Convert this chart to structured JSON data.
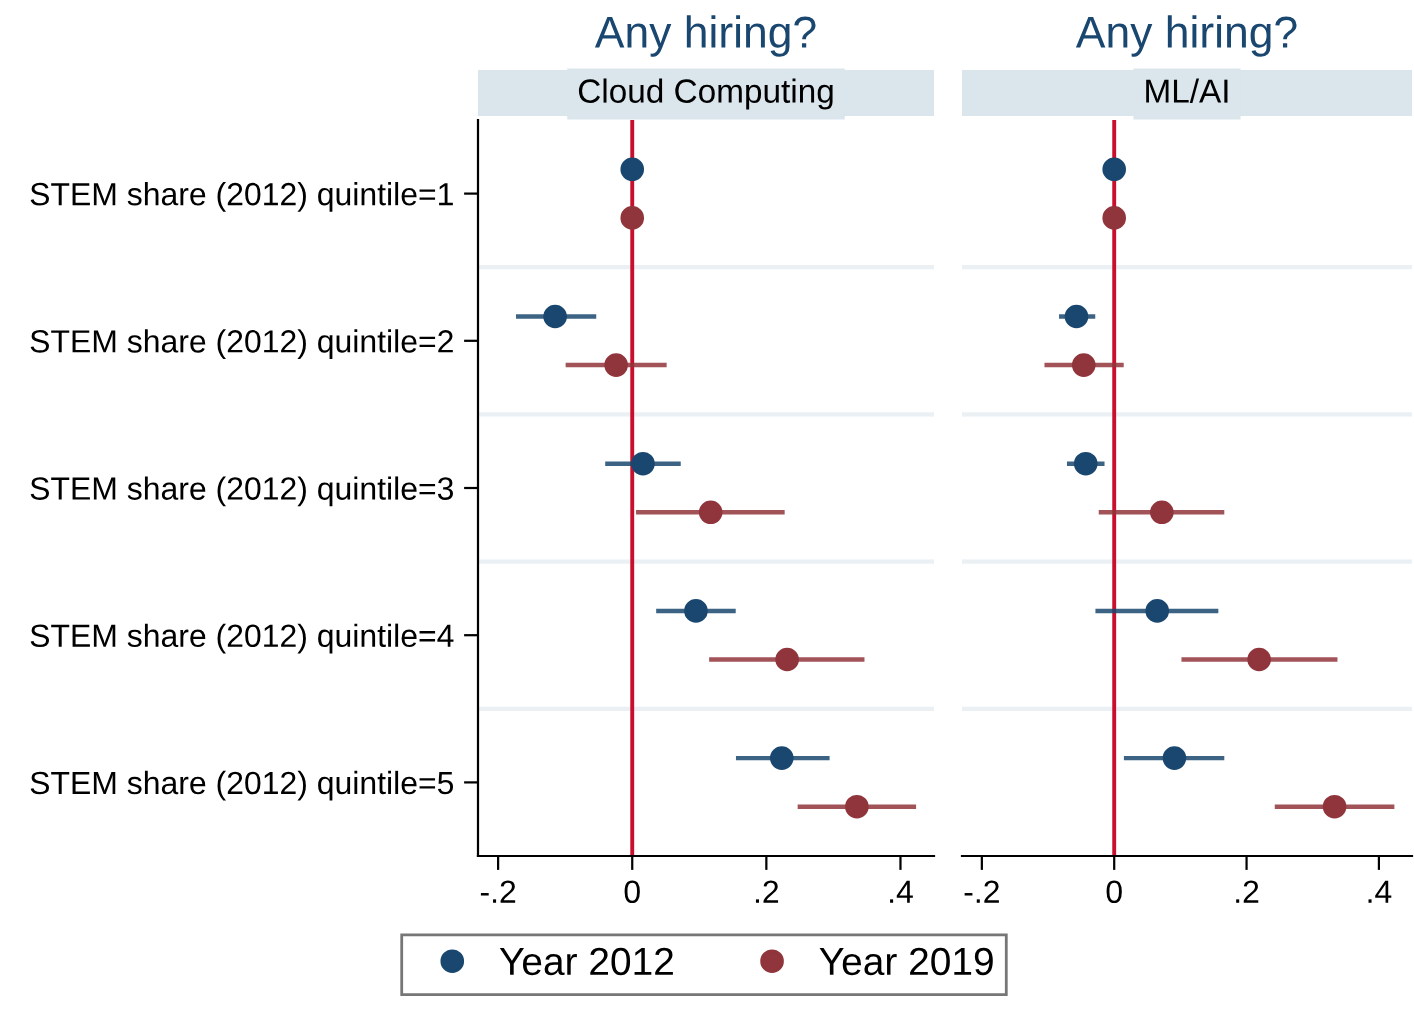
{
  "chart_data": [
    {
      "type": "scatter",
      "orientation": "horizontal",
      "title": "Any hiring?",
      "subtitle": "Cloud Computing",
      "categories": [
        "STEM share (2012) quintile=1",
        "STEM share (2012) quintile=2",
        "STEM share (2012) quintile=3",
        "STEM share (2012) quintile=4",
        "STEM share (2012) quintile=5"
      ],
      "series": [
        {
          "name": "Year 2012",
          "color": "#1a476f",
          "values": [
            0,
            -0.115,
            0.016,
            0.095,
            0.223
          ],
          "errors": [
            null,
            [
              -0.17,
              -0.057
            ],
            [
              -0.037,
              0.069
            ],
            [
              0.039,
              0.151
            ],
            [
              0.158,
              0.291
            ]
          ]
        },
        {
          "name": "Year 2019",
          "color": "#90353b",
          "values": [
            0,
            -0.024,
            0.117,
            0.231,
            0.335
          ],
          "errors": [
            null,
            [
              -0.096,
              0.048
            ],
            [
              0.009,
              0.224
            ],
            [
              0.118,
              0.343
            ],
            [
              0.25,
              0.42
            ]
          ]
        }
      ],
      "xlim": [
        -0.23,
        0.45
      ],
      "xticks": [
        {
          "value": -0.2,
          "label": "-.2"
        },
        0,
        {
          "value": 0.2,
          "label": ".2"
        },
        {
          "value": 0.4,
          "label": ".4"
        }
      ],
      "ref_lines": [
        {
          "axis": "x",
          "value": 0,
          "color": "#c8102e"
        }
      ],
      "grid": "y",
      "marker": "circle",
      "legend": "bottom"
    },
    {
      "type": "scatter",
      "orientation": "horizontal",
      "title": "Any hiring?",
      "subtitle": "ML/AI",
      "categories": [
        null,
        null,
        null,
        null,
        null
      ],
      "series": [
        {
          "color": "#1a476f",
          "values": [
            0,
            -0.057,
            -0.043,
            0.065,
            0.091
          ],
          "errors": [
            null,
            [
              -0.08,
              -0.032
            ],
            [
              -0.068,
              -0.018
            ],
            [
              -0.025,
              0.154
            ],
            [
              0.018,
              0.163
            ]
          ]
        },
        {
          "color": "#90353b",
          "values": [
            0,
            -0.046,
            0.072,
            0.219,
            0.333
          ],
          "errors": [
            null,
            [
              -0.102,
              0.011
            ],
            [
              -0.02,
              0.163
            ],
            [
              0.105,
              0.334
            ],
            [
              0.246,
              0.42
            ]
          ]
        }
      ],
      "xlim": [
        -0.23,
        0.45
      ],
      "xticks": [
        {
          "value": -0.2,
          "label": "-.2"
        },
        0,
        {
          "value": 0.2,
          "label": ".2"
        },
        {
          "value": 0.4,
          "label": ".4"
        }
      ],
      "ref_lines": [
        {
          "axis": "x",
          "value": 0,
          "color": "#c8102e"
        }
      ],
      "grid": "y",
      "marker": "circle",
      "tick_labels": "x"
    }
  ]
}
